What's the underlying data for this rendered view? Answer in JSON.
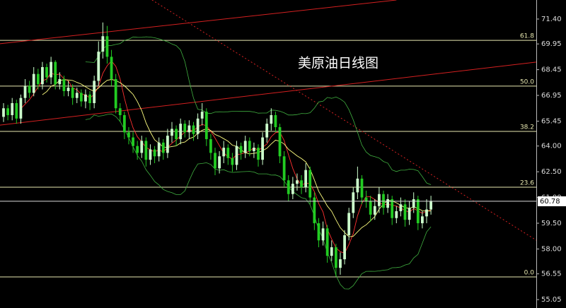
{
  "chart_data": {
    "type": "candlestick",
    "title": "美原油日线图",
    "open": [
      65.7,
      66.2,
      65.8,
      66.5,
      65.6,
      66.8,
      67.5,
      67.1,
      68.2,
      67.6,
      68.6,
      68.0,
      68.9,
      67.6,
      67.9,
      67.2,
      67.4,
      66.8,
      67.1,
      66.6,
      67.0,
      66.5,
      67.8,
      69.5,
      70.4,
      69.2,
      67.9,
      66.2,
      65.8,
      64.8,
      64.5,
      64.0,
      63.6,
      64.3,
      63.2,
      63.8,
      63.4,
      64.2,
      63.6,
      64.6,
      65.0,
      64.4,
      65.3,
      64.8,
      65.2,
      64.7,
      65.6,
      66.0,
      64.4,
      63.6,
      62.7,
      63.4,
      63.9,
      63.3,
      62.9,
      64.0,
      63.6,
      64.3,
      63.7,
      63.9,
      63.2,
      64.5,
      65.3,
      65.8,
      65.1,
      63.4,
      62.0,
      61.2,
      61.8,
      62.0,
      61.6,
      62.6,
      61.0,
      59.5,
      58.5,
      59.2,
      57.6,
      58.1,
      56.9,
      57.4,
      58.8,
      60.1,
      61.3,
      62.1,
      61.0,
      60.8,
      60.0,
      60.5,
      61.2,
      60.4,
      60.9,
      59.8,
      60.2,
      60.6,
      59.7,
      60.4,
      60.9,
      59.5,
      59.9,
      60.3
    ],
    "high": [
      66.5,
      66.4,
      66.8,
      66.7,
      67.0,
      67.9,
      67.8,
      68.6,
      68.5,
      68.9,
      68.8,
      69.2,
      69.0,
      68.3,
      68.1,
      67.8,
      67.6,
      67.4,
      67.3,
      67.3,
      67.2,
      68.1,
      70.1,
      71.2,
      71.0,
      69.6,
      68.2,
      66.5,
      66.0,
      65.1,
      64.8,
      64.3,
      64.6,
      64.5,
      64.1,
      64.0,
      64.5,
      64.4,
      65.0,
      65.4,
      65.2,
      65.6,
      65.5,
      65.5,
      65.4,
      65.9,
      66.5,
      66.2,
      64.7,
      63.9,
      63.7,
      64.3,
      64.1,
      63.6,
      64.3,
      64.2,
      64.6,
      64.5,
      64.2,
      64.1,
      64.8,
      65.6,
      66.2,
      66.0,
      65.3,
      63.7,
      62.3,
      62.2,
      62.4,
      62.3,
      63.0,
      62.8,
      61.3,
      59.8,
      59.6,
      59.4,
      58.5,
      58.3,
      57.8,
      59.1,
      60.4,
      61.6,
      62.8,
      62.3,
      61.4,
      61.1,
      60.9,
      61.6,
      61.4,
      61.2,
      61.1,
      60.5,
      61.0,
      60.9,
      60.8,
      61.3,
      61.1,
      60.2,
      60.9,
      61.1
    ],
    "low": [
      65.4,
      65.5,
      65.5,
      65.3,
      65.3,
      66.5,
      66.8,
      66.9,
      67.3,
      67.3,
      67.7,
      67.6,
      67.3,
      67.3,
      66.9,
      66.9,
      66.4,
      66.5,
      66.3,
      66.2,
      66.1,
      66.2,
      67.5,
      69.1,
      68.8,
      67.5,
      65.9,
      65.4,
      64.4,
      64.1,
      63.6,
      63.2,
      63.3,
      62.8,
      62.9,
      63.0,
      63.1,
      63.2,
      63.3,
      64.2,
      64.0,
      64.1,
      64.5,
      64.4,
      64.3,
      64.4,
      65.2,
      64.0,
      63.2,
      62.3,
      62.4,
      63.0,
      62.9,
      62.5,
      62.6,
      63.2,
      63.3,
      63.4,
      63.3,
      62.8,
      62.9,
      64.2,
      64.9,
      64.8,
      63.0,
      61.6,
      60.8,
      60.9,
      61.4,
      61.2,
      61.3,
      60.6,
      59.1,
      58.1,
      58.2,
      57.2,
      57.3,
      56.4,
      56.5,
      57.1,
      58.5,
      59.8,
      60.9,
      60.6,
      60.4,
      59.6,
      59.7,
      60.1,
      60.0,
      60.1,
      59.4,
      59.5,
      59.9,
      59.3,
      59.4,
      60.1,
      59.1,
      59.2,
      59.5,
      60.0
    ],
    "close": [
      66.2,
      65.8,
      66.5,
      65.6,
      66.8,
      67.5,
      67.1,
      68.2,
      67.6,
      68.6,
      68.0,
      68.9,
      67.6,
      67.9,
      67.2,
      67.4,
      66.8,
      67.1,
      66.6,
      67.0,
      66.5,
      67.8,
      69.5,
      70.4,
      69.2,
      67.9,
      66.2,
      65.8,
      64.8,
      64.5,
      64.0,
      63.6,
      64.3,
      63.2,
      63.8,
      63.4,
      64.2,
      63.6,
      64.6,
      65.0,
      64.4,
      65.3,
      64.8,
      65.2,
      64.7,
      65.6,
      66.0,
      64.4,
      63.6,
      62.7,
      63.4,
      63.9,
      63.3,
      62.9,
      64.0,
      63.6,
      64.3,
      63.7,
      63.9,
      63.2,
      64.5,
      65.3,
      65.8,
      65.1,
      63.4,
      62.0,
      61.2,
      61.8,
      62.0,
      61.6,
      62.6,
      61.0,
      59.5,
      58.5,
      59.2,
      57.6,
      58.1,
      56.9,
      57.4,
      58.8,
      60.1,
      61.3,
      62.1,
      61.0,
      60.8,
      60.0,
      60.5,
      61.2,
      60.4,
      60.9,
      59.8,
      60.2,
      60.6,
      59.7,
      60.4,
      60.9,
      59.5,
      59.9,
      60.3,
      60.78
    ],
    "up_color": "#ccffcc",
    "down_color": "#22cc22",
    "xlim": [
      -0.82,
      123.4
    ],
    "ylim": [
      54.56,
      72.51
    ],
    "yticks": [
      {
        "value": 71.4,
        "label": "71.40"
      },
      69.95,
      68.45,
      66.95,
      65.45,
      {
        "value": 64,
        "label": "64.00"
      },
      {
        "value": 62.5,
        "label": "62.50"
      },
      {
        "value": 61,
        "label": "61.00"
      },
      {
        "value": 59.5,
        "label": "59.50"
      },
      {
        "value": 58,
        "label": "58.00"
      },
      56.55,
      55.05
    ],
    "fib_levels": [
      {
        "label": "61.8",
        "value": 70.16
      },
      {
        "label": "50.0",
        "value": 67.49
      },
      {
        "label": "38.2",
        "value": 64.85
      },
      {
        "label": "23.6",
        "value": 61.6
      },
      {
        "label": "0.0",
        "value": 56.37
      }
    ],
    "fib_color": "#e8e8b0",
    "trendlines": [
      {
        "color": "#d42020",
        "dashed": false,
        "points": [
          [
            -0.82,
            65.22
          ],
          [
            123.4,
            68.89
          ]
        ]
      },
      {
        "color": "#d42020",
        "dashed": false,
        "points": [
          [
            -0.82,
            69.96
          ],
          [
            91,
            72.51
          ]
        ]
      },
      {
        "color": "#d42020",
        "dashed": true,
        "points": [
          [
            34.4,
            72.51
          ],
          [
            123.4,
            58.51
          ]
        ]
      }
    ],
    "indicators": {
      "ma": [
        {
          "period": 5,
          "color": "#ff3030"
        },
        {
          "period": 10,
          "color": "#ffff80"
        }
      ],
      "bollinger": {
        "period": 20,
        "k": 2,
        "color": "#40b040"
      }
    }
  }
}
